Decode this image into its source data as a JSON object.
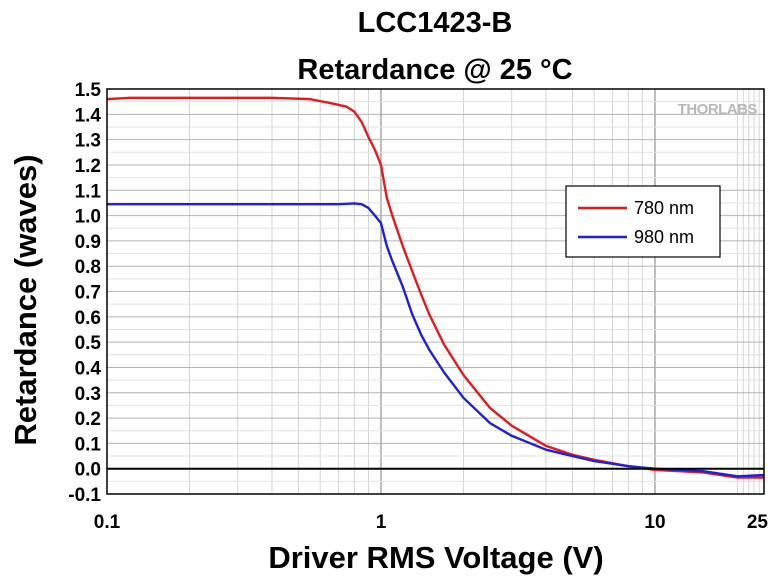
{
  "chart_data": {
    "type": "line",
    "title": "LCC1423-B",
    "subtitle": "Retardance @ 25 °C",
    "xlabel": "Driver RMS Voltage (V)",
    "ylabel": "Retardance (waves)",
    "x_scale": "log",
    "xlim": [
      0.1,
      25
    ],
    "ylim": [
      -0.1,
      1.5
    ],
    "x_ticks": [
      0.1,
      1,
      10,
      25
    ],
    "x_tick_labels": [
      "0.1",
      "1",
      "10",
      "25"
    ],
    "y_ticks": [
      -0.1,
      0.0,
      0.1,
      0.2,
      0.3,
      0.4,
      0.5,
      0.6,
      0.7,
      0.8,
      0.9,
      1.0,
      1.1,
      1.2,
      1.3,
      1.4,
      1.5
    ],
    "y_tick_labels": [
      "-0.1",
      "0.0",
      "0.1",
      "0.2",
      "0.3",
      "0.4",
      "0.5",
      "0.6",
      "0.7",
      "0.8",
      "0.9",
      "1.0",
      "1.1",
      "1.2",
      "1.3",
      "1.4",
      "1.5"
    ],
    "grid": true,
    "legend_position": "upper-right",
    "watermark": "THORLABS",
    "series": [
      {
        "name": "780 nm",
        "color": "#e41a1c",
        "x": [
          0.1,
          0.12,
          0.2,
          0.4,
          0.55,
          0.65,
          0.75,
          0.8,
          0.85,
          0.9,
          0.95,
          1.0,
          1.05,
          1.1,
          1.2,
          1.3,
          1.4,
          1.5,
          1.7,
          2.0,
          2.5,
          3.0,
          4.0,
          5.0,
          6.0,
          8.0,
          10.0,
          15.0,
          20.0,
          25.0
        ],
        "y": [
          1.46,
          1.465,
          1.465,
          1.465,
          1.46,
          1.445,
          1.43,
          1.41,
          1.37,
          1.31,
          1.26,
          1.2,
          1.07,
          1.0,
          0.88,
          0.78,
          0.69,
          0.61,
          0.49,
          0.37,
          0.24,
          0.17,
          0.09,
          0.055,
          0.035,
          0.01,
          -0.005,
          -0.015,
          -0.035,
          -0.035
        ]
      },
      {
        "name": "980 nm",
        "color": "#1f1fdc",
        "x": [
          0.1,
          0.2,
          0.4,
          0.6,
          0.7,
          0.8,
          0.85,
          0.9,
          0.95,
          1.0,
          1.05,
          1.1,
          1.2,
          1.3,
          1.4,
          1.5,
          1.7,
          2.0,
          2.5,
          3.0,
          4.0,
          5.0,
          6.0,
          8.0,
          10.0,
          15.0,
          20.0,
          25.0
        ],
        "y": [
          1.045,
          1.045,
          1.045,
          1.045,
          1.045,
          1.048,
          1.045,
          1.03,
          1.0,
          0.97,
          0.88,
          0.82,
          0.72,
          0.61,
          0.53,
          0.47,
          0.38,
          0.28,
          0.18,
          0.13,
          0.075,
          0.05,
          0.03,
          0.01,
          0.0,
          -0.01,
          -0.03,
          -0.025
        ]
      }
    ]
  }
}
